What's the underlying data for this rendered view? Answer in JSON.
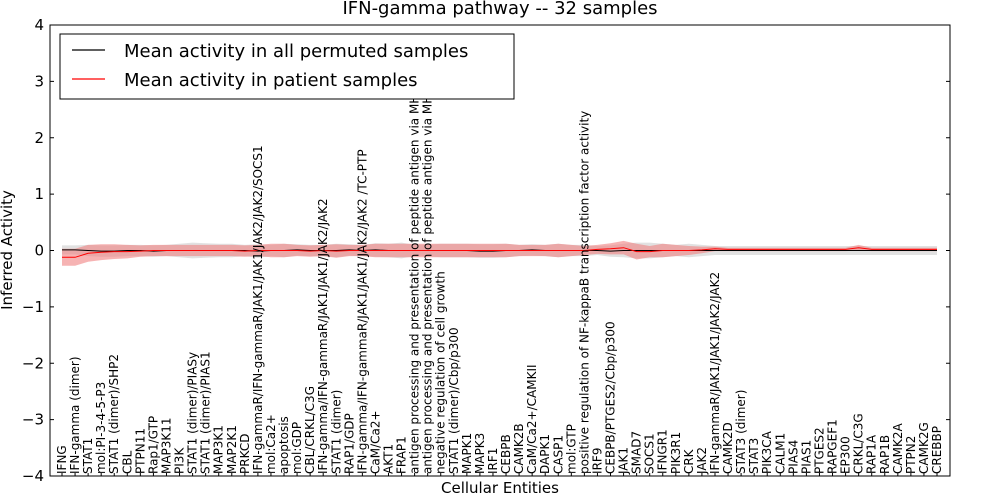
{
  "chart_data": {
    "type": "line",
    "title": "IFN-gamma pathway -- 32 samples",
    "xlabel": "Cellular Entities",
    "ylabel": "Inferred Activity",
    "ylim": [
      -4,
      4
    ],
    "yticks": [
      -4,
      -3,
      -2,
      -1,
      0,
      1,
      2,
      3,
      4
    ],
    "ytick_labels": [
      "−4",
      "−3",
      "−2",
      "−1",
      "0",
      "1",
      "2",
      "3",
      "4"
    ],
    "grid": false,
    "legend_position": "top-left",
    "categories": [
      "IFNG",
      "IFN-gamma (dimer)",
      "STAT1",
      "mol:PI-3-4-5-P3",
      "STAT1 (dimer)/SHP2",
      "CBL",
      "PTPN11",
      "Rap1/GTP",
      "MAP3K11",
      "PI3K",
      "STAT1 (dimer)/PIASy",
      "STAT1 (dimer)/PIAS1",
      "MAP3K1",
      "MAP2K1",
      "PRKCD",
      "IFN-gammaR/IFN-gammaR/JAK1/JAK1/JAK2/JAK2/SOCS1",
      "mol:Ca2+",
      "apoptosis",
      "mol:GDP",
      "CBL/CRKL/C3G",
      "IFN-gamma/IFN-gammaR/JAK1/JAK1/JAK2/JAK2",
      "STAT1 (dimer)",
      "RAP1/GDP",
      "IFN-gamma/IFN-gammaR/JAK1/JAK1/JAK2/JAK2  /TC-PTP",
      "CaM/Ca2+",
      "AKT1",
      "FRAP1",
      "antigen processing and presentation of peptide antigen via MHC class I",
      "antigen processing and presentation of peptide antigen via MHC class II",
      "negative regulation of cell growth",
      "STAT1 (dimer)/Cbp/p300",
      "MAPK1",
      "MAPK3",
      "IRF1",
      "CEBPB",
      "CAMK2B",
      "CaM/Ca2+/CAMKII",
      "DAPK1",
      "CASP1",
      "mol:GTP",
      "positive regulation of NF-kappaB transcription factor activity",
      "IRF9",
      "CEBPB/PTGES2/Cbp/p300",
      "JAK1",
      "SMAD7",
      "SOCS1",
      "IFNGR1",
      "PIK3R1",
      "CRK",
      "JAK2",
      "IFN-gammaR/JAK1/JAK1/JAK2/JAK2",
      "CAMK2D",
      "STAT3 (dimer)",
      "STAT3",
      "PIK3CA",
      "CALM1",
      "PIAS4",
      "PIAS1",
      "PTGES2",
      "RAPGEF1",
      "EP300",
      "CRKL/C3G",
      "RAP1A",
      "RAP1B",
      "CAMK2A",
      "PTPN2",
      "CAMK2G",
      "CREBBP"
    ],
    "series": [
      {
        "name": "Mean activity in all permuted samples",
        "color": "#000000",
        "band_color": "#c8c8c8",
        "values": [
          0.01,
          0.01,
          0.0,
          -0.01,
          -0.01,
          0.0,
          0.0,
          -0.01,
          0.0,
          0.0,
          0.0,
          0.0,
          0.0,
          0.0,
          0.0,
          -0.01,
          0.0,
          0.0,
          0.01,
          0.0,
          0.0,
          0.0,
          0.01,
          0.0,
          0.01,
          0.0,
          0.0,
          0.0,
          0.0,
          0.0,
          0.0,
          0.0,
          -0.01,
          -0.01,
          0.0,
          0.0,
          0.01,
          0.0,
          0.0,
          0.0,
          0.0,
          0.0,
          -0.01,
          0.0,
          0.0,
          0.0,
          0.0,
          0.0,
          0.0,
          0.0,
          0.0,
          0.0,
          0.0,
          0.0,
          0.0,
          0.0,
          0.0,
          0.0,
          0.0,
          0.0,
          0.0,
          0.0,
          0.0,
          0.0,
          0.0,
          0.0,
          0.0,
          0.0
        ],
        "band": [
          0.08,
          0.08,
          0.1,
          0.1,
          0.1,
          0.1,
          0.1,
          0.1,
          0.1,
          0.12,
          0.14,
          0.13,
          0.12,
          0.12,
          0.1,
          0.12,
          0.1,
          0.12,
          0.1,
          0.1,
          0.1,
          0.12,
          0.1,
          0.1,
          0.12,
          0.12,
          0.14,
          0.1,
          0.1,
          0.12,
          0.12,
          0.12,
          0.12,
          0.12,
          0.12,
          0.1,
          0.1,
          0.1,
          0.12,
          0.1,
          0.1,
          0.08,
          0.1,
          0.12,
          0.14,
          0.14,
          0.12,
          0.1,
          0.12,
          0.1,
          0.08,
          0.08,
          0.08,
          0.08,
          0.08,
          0.08,
          0.08,
          0.08,
          0.08,
          0.08,
          0.08,
          0.08,
          0.08,
          0.08,
          0.08,
          0.08,
          0.08,
          0.08
        ]
      },
      {
        "name": "Mean activity in patient samples",
        "color": "#ff0000",
        "band_color": "#f08080",
        "values": [
          -0.12,
          -0.12,
          -0.05,
          -0.03,
          -0.02,
          -0.02,
          -0.01,
          0.0,
          0.0,
          0.0,
          0.0,
          0.0,
          0.0,
          0.0,
          -0.01,
          0.0,
          0.0,
          0.0,
          0.0,
          -0.01,
          0.0,
          -0.01,
          0.0,
          0.0,
          0.0,
          0.0,
          0.0,
          0.0,
          0.0,
          0.0,
          0.0,
          0.0,
          0.0,
          0.0,
          0.0,
          0.0,
          0.0,
          0.0,
          0.0,
          0.0,
          0.0,
          0.02,
          0.03,
          0.05,
          -0.02,
          -0.02,
          0.0,
          0.0,
          0.0,
          0.01,
          0.03,
          0.02,
          0.02,
          0.02,
          0.02,
          0.02,
          0.02,
          0.02,
          0.02,
          0.02,
          0.02,
          0.05,
          0.02,
          0.02,
          0.02,
          0.02,
          0.02,
          0.02
        ],
        "band": [
          0.15,
          0.15,
          0.15,
          0.14,
          0.13,
          0.12,
          0.1,
          0.1,
          0.1,
          0.1,
          0.1,
          0.1,
          0.1,
          0.1,
          0.1,
          0.1,
          0.12,
          0.12,
          0.1,
          0.1,
          0.1,
          0.12,
          0.1,
          0.1,
          0.12,
          0.12,
          0.12,
          0.12,
          0.12,
          0.12,
          0.12,
          0.12,
          0.12,
          0.12,
          0.12,
          0.1,
          0.1,
          0.1,
          0.12,
          0.1,
          0.08,
          0.08,
          0.1,
          0.12,
          0.14,
          0.1,
          0.12,
          0.1,
          0.08,
          0.06,
          0.04,
          0.03,
          0.03,
          0.03,
          0.03,
          0.03,
          0.03,
          0.03,
          0.03,
          0.03,
          0.03,
          0.05,
          0.03,
          0.03,
          0.03,
          0.03,
          0.03,
          0.03
        ]
      }
    ]
  }
}
